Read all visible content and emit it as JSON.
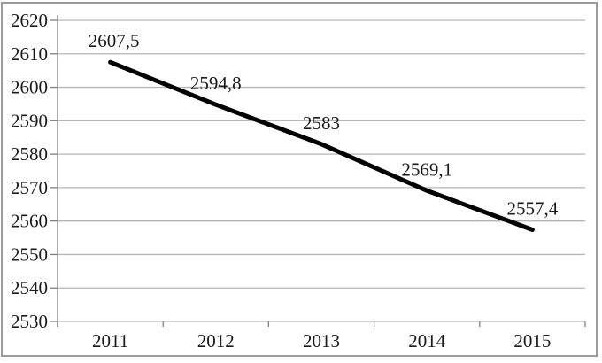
{
  "chart_data": {
    "type": "line",
    "title": "",
    "categories": [
      "2011",
      "2012",
      "2013",
      "2014",
      "2015"
    ],
    "series": [
      {
        "name": "value",
        "values": [
          2607.5,
          2594.8,
          2583,
          2569.1,
          2557.4
        ]
      }
    ],
    "point_labels": [
      "2607,5",
      "2594,8",
      "2583",
      "2569,1",
      "2557,4"
    ],
    "y_ticks": [
      2530,
      2540,
      2550,
      2560,
      2570,
      2580,
      2590,
      2600,
      2610,
      2620
    ],
    "ylim": [
      2530,
      2620
    ],
    "xlabel": "",
    "ylabel": "",
    "grid": true,
    "legend_position": "none",
    "line_color": "#000000",
    "gridline_color": "#b5b5b5",
    "axis_color": "#808080",
    "frame_color": "#9b9b9b",
    "text_color": "#1a1a1a",
    "background_color": "#ffffff"
  }
}
